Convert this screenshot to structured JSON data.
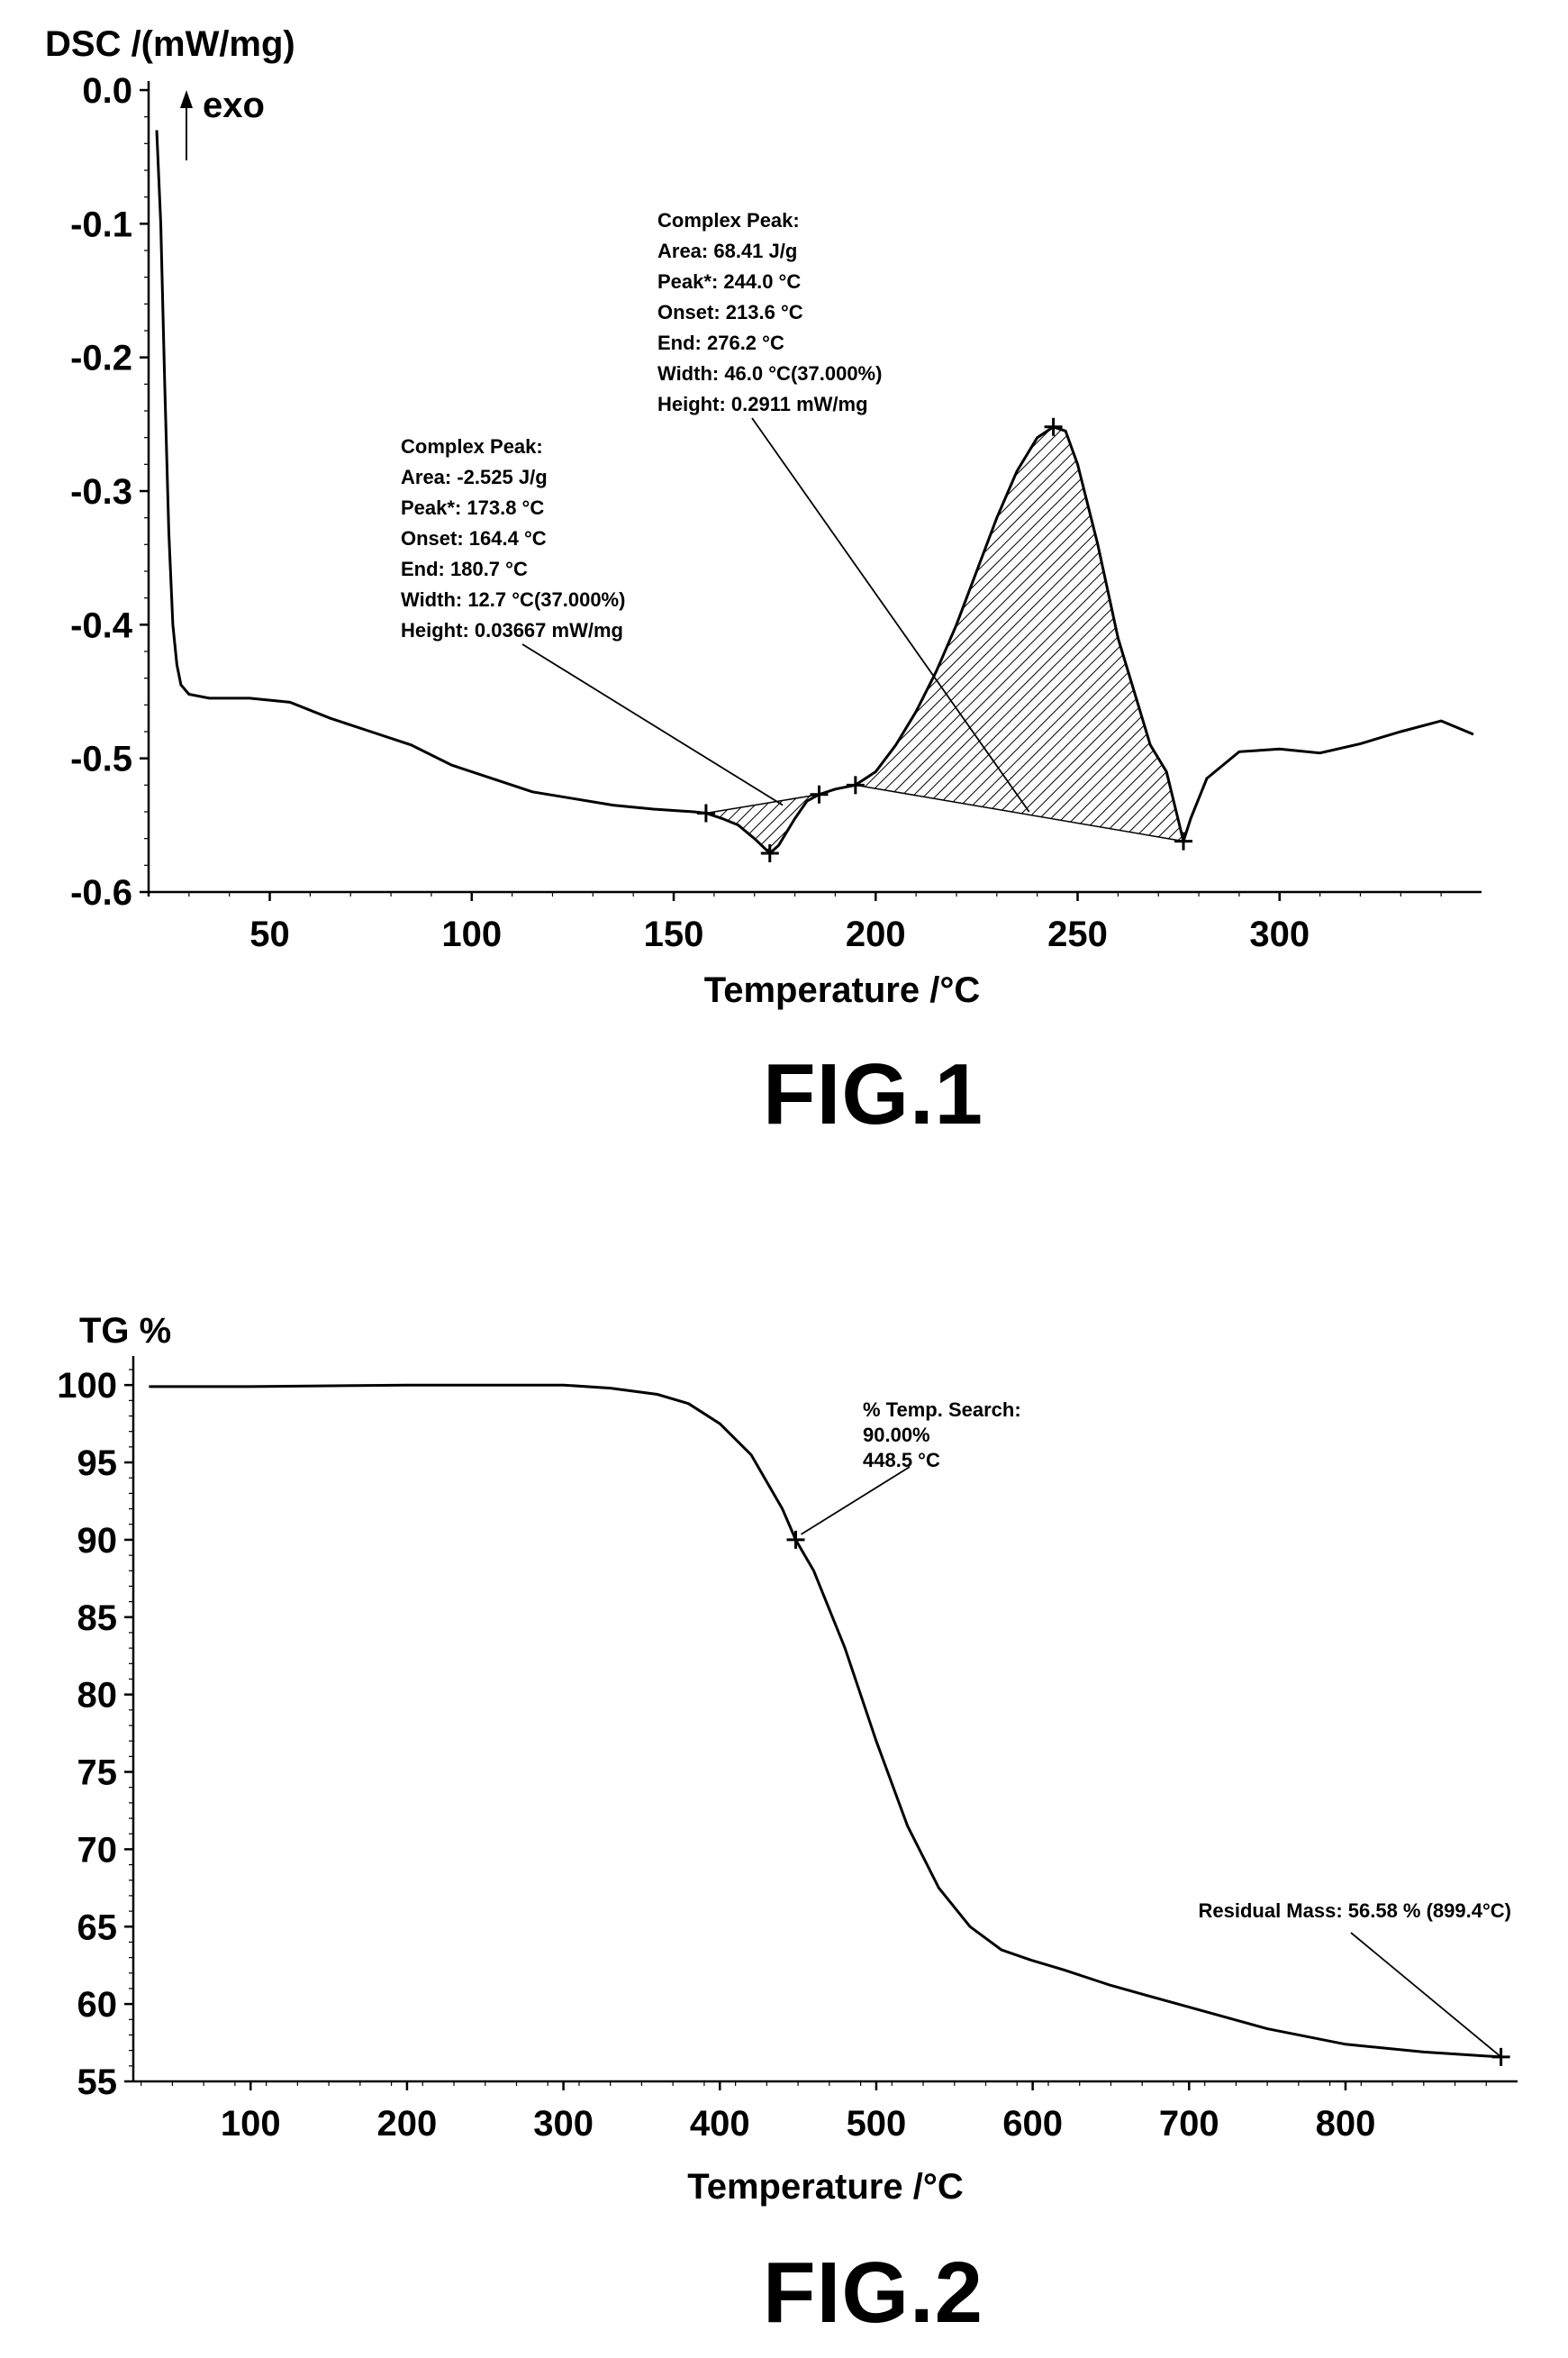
{
  "chart_data": [
    {
      "type": "line",
      "title": "",
      "caption": "FIG.1",
      "ylabel": "DSC /(mW/mg)",
      "xlabel": "Temperature /°C",
      "exo_marker": "exo",
      "xlim": [
        20,
        350
      ],
      "ylim": [
        -0.6,
        0.0
      ],
      "xticks": [
        50,
        100,
        150,
        200,
        250,
        300
      ],
      "yticks": [
        0.0,
        -0.1,
        -0.2,
        -0.3,
        -0.4,
        -0.5,
        -0.6
      ],
      "ytick_labels": [
        "0.0",
        "-0.1",
        "-0.2",
        "-0.3",
        "-0.4",
        "-0.5",
        "-0.6"
      ],
      "xtick_labels": [
        "50",
        "100",
        "150",
        "200",
        "250",
        "300"
      ],
      "grid": false,
      "series": [
        {
          "x": [
            22,
            23,
            24,
            25,
            26,
            27,
            28,
            30,
            35,
            45,
            55,
            65,
            75,
            85,
            95,
            105,
            115,
            125,
            135,
            145,
            155,
            158,
            162,
            166,
            170,
            173.8,
            176,
            180,
            183,
            186,
            190,
            195,
            200,
            205,
            210,
            215,
            220,
            225,
            230,
            235,
            240,
            244,
            247,
            250,
            255,
            260,
            265,
            268,
            272,
            276.2,
            278,
            282,
            290,
            300,
            310,
            320,
            330,
            340,
            348
          ],
          "y": [
            -0.03,
            -0.1,
            -0.22,
            -0.33,
            -0.4,
            -0.43,
            -0.445,
            -0.452,
            -0.455,
            -0.455,
            -0.458,
            -0.47,
            -0.48,
            -0.49,
            -0.505,
            -0.515,
            -0.525,
            -0.53,
            -0.535,
            -0.538,
            -0.54,
            -0.541,
            -0.545,
            -0.55,
            -0.56,
            -0.571,
            -0.565,
            -0.545,
            -0.532,
            -0.527,
            -0.523,
            -0.52,
            -0.51,
            -0.49,
            -0.465,
            -0.435,
            -0.4,
            -0.36,
            -0.32,
            -0.285,
            -0.26,
            -0.252,
            -0.255,
            -0.28,
            -0.34,
            -0.41,
            -0.46,
            -0.49,
            -0.51,
            -0.562,
            -0.545,
            -0.515,
            -0.495,
            -0.493,
            -0.496,
            -0.489,
            -0.48,
            -0.472,
            -0.482
          ]
        }
      ],
      "markers": [
        {
          "x": 158,
          "y": -0.541
        },
        {
          "x": 173.8,
          "y": -0.571
        },
        {
          "x": 186,
          "y": -0.527
        },
        {
          "x": 195,
          "y": -0.52
        },
        {
          "x": 244,
          "y": -0.252
        },
        {
          "x": 276.2,
          "y": -0.562
        }
      ],
      "annotations": [
        {
          "lines": [
            "Complex Peak:",
            "Area: -2.525 J/g",
            "Peak*: 173.8 °C",
            "Onset: 164.4 °C",
            "End: 180.7 °C",
            "Width: 12.7 °C(37.000%)",
            "Height: 0.03667 mW/mg"
          ],
          "pointer": {
            "x": 177,
            "y": -0.535
          }
        },
        {
          "lines": [
            "Complex Peak:",
            "Area: 68.41 J/g",
            "Peak*: 244.0 °C",
            "Onset: 213.6 °C",
            "End: 276.2 °C",
            "Width: 46.0 °C(37.000%)",
            "Height: 0.2911 mW/mg"
          ],
          "pointer": {
            "x": 238,
            "y": -0.54
          }
        }
      ]
    },
    {
      "type": "line",
      "title": "",
      "caption": "FIG.2",
      "ylabel": "TG %",
      "xlabel": "Temperature /°C",
      "xlim": [
        25,
        910
      ],
      "ylim": [
        55,
        101
      ],
      "xticks": [
        100,
        200,
        300,
        400,
        500,
        600,
        700,
        800
      ],
      "yticks": [
        100,
        95,
        90,
        85,
        80,
        75,
        70,
        65,
        60,
        55
      ],
      "ytick_labels": [
        "100",
        "95",
        "90",
        "85",
        "80",
        "75",
        "70",
        "65",
        "60",
        "55"
      ],
      "xtick_labels": [
        "100",
        "200",
        "300",
        "400",
        "500",
        "600",
        "700",
        "800"
      ],
      "grid": false,
      "series": [
        {
          "x": [
            35,
            100,
            200,
            250,
            300,
            330,
            360,
            380,
            400,
            420,
            440,
            448.5,
            460,
            480,
            500,
            520,
            540,
            560,
            580,
            600,
            620,
            650,
            700,
            750,
            800,
            850,
            899.4
          ],
          "y": [
            99.9,
            99.9,
            100.0,
            100.0,
            100.0,
            99.8,
            99.4,
            98.8,
            97.5,
            95.5,
            92.0,
            90.0,
            88.0,
            83.0,
            77.0,
            71.5,
            67.5,
            65.0,
            63.5,
            62.8,
            62.2,
            61.2,
            59.8,
            58.4,
            57.4,
            56.9,
            56.58
          ]
        }
      ],
      "markers": [
        {
          "x": 448.5,
          "y": 90.0
        },
        {
          "x": 899.4,
          "y": 56.58
        }
      ],
      "annotations": [
        {
          "lines": [
            "% Temp. Search:",
            "90.00%",
            "448.5 °C"
          ],
          "pointer": {
            "x": 448.5,
            "y": 90.0
          }
        },
        {
          "lines": [
            "Residual Mass: 56.58 % (899.4°C)"
          ],
          "pointer": {
            "x": 899.4,
            "y": 56.58
          }
        }
      ]
    }
  ]
}
